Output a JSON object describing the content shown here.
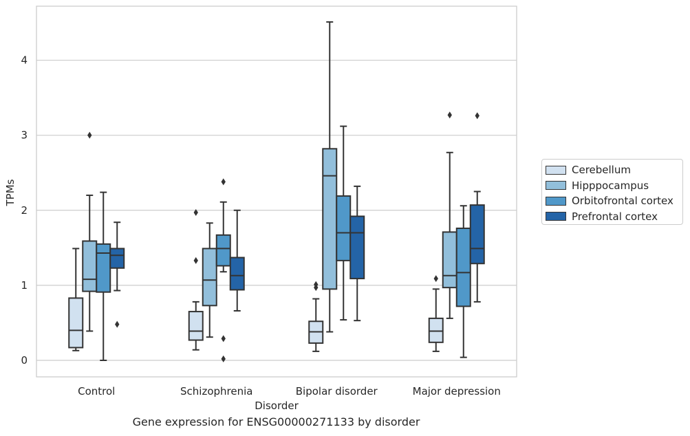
{
  "caption": "Gene expression for ENSG00000271133 by disorder",
  "chart_data": {
    "type": "box",
    "title": "",
    "xlabel": "Disorder",
    "ylabel": "TPMs",
    "ylim": [
      -0.22,
      4.72
    ],
    "yticks": [
      0,
      1,
      2,
      3,
      4
    ],
    "grid": "horizontal",
    "legend_position": "right",
    "categories": [
      "Control",
      "Schizophrenia",
      "Bipolar disorder",
      "Major depression"
    ],
    "series": [
      {
        "name": "Cerebellum",
        "color": "#d1e1f0",
        "boxes": [
          {
            "whislo": 0.13,
            "q1": 0.17,
            "med": 0.4,
            "q3": 0.83,
            "whishi": 1.49,
            "fliers": []
          },
          {
            "whislo": 0.14,
            "q1": 0.27,
            "med": 0.39,
            "q3": 0.65,
            "whishi": 0.78,
            "fliers": [
              1.33,
              1.97
            ]
          },
          {
            "whislo": 0.12,
            "q1": 0.23,
            "med": 0.38,
            "q3": 0.52,
            "whishi": 0.82,
            "fliers": [
              0.97,
              1.01
            ]
          },
          {
            "whislo": 0.12,
            "q1": 0.24,
            "med": 0.39,
            "q3": 0.56,
            "whishi": 0.95,
            "fliers": [
              1.09
            ]
          }
        ]
      },
      {
        "name": "Hipppocampus",
        "color": "#92bfdb",
        "boxes": [
          {
            "whislo": 0.39,
            "q1": 0.92,
            "med": 1.08,
            "q3": 1.59,
            "whishi": 2.2,
            "fliers": [
              3.0
            ]
          },
          {
            "whislo": 0.31,
            "q1": 0.73,
            "med": 1.07,
            "q3": 1.49,
            "whishi": 1.83,
            "fliers": []
          },
          {
            "whislo": 0.38,
            "q1": 0.95,
            "med": 2.46,
            "q3": 2.82,
            "whishi": 4.51,
            "fliers": []
          },
          {
            "whislo": 0.56,
            "q1": 0.97,
            "med": 1.13,
            "q3": 1.71,
            "whishi": 2.77,
            "fliers": [
              3.27
            ]
          }
        ]
      },
      {
        "name": "Orbitofrontal cortex",
        "color": "#5098c9",
        "boxes": [
          {
            "whislo": 0.0,
            "q1": 0.91,
            "med": 1.43,
            "q3": 1.55,
            "whishi": 2.24,
            "fliers": []
          },
          {
            "whislo": 1.18,
            "q1": 1.26,
            "med": 1.49,
            "q3": 1.67,
            "whishi": 2.11,
            "fliers": [
              0.02,
              0.29,
              2.38
            ]
          },
          {
            "whislo": 0.54,
            "q1": 1.33,
            "med": 1.7,
            "q3": 2.19,
            "whishi": 3.12,
            "fliers": []
          },
          {
            "whislo": 0.04,
            "q1": 0.72,
            "med": 1.17,
            "q3": 1.76,
            "whishi": 2.06,
            "fliers": []
          }
        ]
      },
      {
        "name": "Prefrontal cortex",
        "color": "#2464a7",
        "boxes": [
          {
            "whislo": 0.93,
            "q1": 1.23,
            "med": 1.4,
            "q3": 1.49,
            "whishi": 1.84,
            "fliers": [
              0.48
            ]
          },
          {
            "whislo": 0.66,
            "q1": 0.94,
            "med": 1.13,
            "q3": 1.37,
            "whishi": 2.0,
            "fliers": []
          },
          {
            "whislo": 0.53,
            "q1": 1.09,
            "med": 1.7,
            "q3": 1.92,
            "whishi": 2.32,
            "fliers": []
          },
          {
            "whislo": 0.78,
            "q1": 1.29,
            "med": 1.49,
            "q3": 2.07,
            "whishi": 2.25,
            "fliers": [
              3.26
            ]
          }
        ]
      }
    ]
  }
}
